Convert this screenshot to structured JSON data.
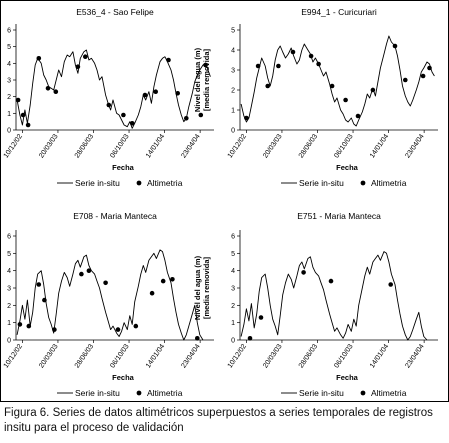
{
  "figure": {
    "caption": "Figura 6. Series de datos altimétricos superpuestos a series temporales de registros insitu para el proceso de validación"
  },
  "colors": {
    "line": "#000000",
    "points": "#000000",
    "frame": "#000000"
  },
  "chart_data": [
    {
      "type": "line",
      "title": "E536_4 - Sao Felipe",
      "xlabel": "Fecha",
      "ylabel": "Nivel del agua (m)",
      "ylabel2": "[media removida]",
      "x_ticks": [
        "10/12/02",
        "20/03/03",
        "28/06/03",
        "06/10/03",
        "14/01/04",
        "23/04/04"
      ],
      "ylim": [
        0,
        6
      ],
      "y_ticks": [
        "0",
        "1",
        "2",
        "3",
        "4",
        "5",
        "6"
      ],
      "legend": [
        "Serie in-situ",
        "Altimetria"
      ],
      "legend_position": "bottom",
      "series": [
        {
          "name": "Serie in-situ",
          "kind": "line",
          "x": [
            "2002-11-25",
            "2002-12-03",
            "2002-12-10",
            "2002-12-17",
            "2002-12-24",
            "2003-01-01",
            "2003-01-08",
            "2003-01-15",
            "2003-01-22",
            "2003-02-01",
            "2003-02-08",
            "2003-02-15",
            "2003-02-22",
            "2003-03-01",
            "2003-03-08",
            "2003-03-15",
            "2003-03-22",
            "2003-03-30",
            "2003-04-07",
            "2003-04-15",
            "2003-04-22",
            "2003-05-01",
            "2003-05-08",
            "2003-05-15",
            "2003-05-22",
            "2003-06-01",
            "2003-06-08",
            "2003-06-15",
            "2003-06-22",
            "2003-07-01",
            "2003-07-08",
            "2003-07-15",
            "2003-07-22",
            "2003-08-01",
            "2003-08-08",
            "2003-08-15",
            "2003-08-22",
            "2003-09-01",
            "2003-09-08",
            "2003-09-15",
            "2003-09-22",
            "2003-10-01",
            "2003-10-08",
            "2003-10-15",
            "2003-10-22",
            "2003-11-01",
            "2003-11-08",
            "2003-11-15",
            "2003-11-22",
            "2003-12-01",
            "2003-12-08",
            "2003-12-15",
            "2003-12-22",
            "2004-01-01",
            "2004-01-08",
            "2004-01-15",
            "2004-01-22",
            "2004-02-01",
            "2004-02-08",
            "2004-02-15",
            "2004-02-22",
            "2004-03-01",
            "2004-03-08",
            "2004-03-15",
            "2004-03-22",
            "2004-04-01",
            "2004-04-08",
            "2004-04-15",
            "2004-04-22",
            "2004-05-01",
            "2004-05-08",
            "2004-05-15",
            "2004-05-22"
          ],
          "y": [
            1.8,
            0.9,
            0.3,
            1.2,
            0.4,
            1.5,
            2.8,
            3.9,
            4.3,
            4.0,
            3.3,
            3.0,
            2.6,
            2.5,
            2.4,
            3.0,
            3.6,
            3.2,
            4.1,
            4.5,
            4.4,
            4.7,
            3.9,
            3.4,
            4.3,
            4.7,
            4.8,
            4.2,
            4.3,
            4.0,
            3.6,
            3.0,
            3.2,
            2.1,
            1.6,
            1.2,
            1.8,
            1.0,
            0.9,
            0.6,
            0.3,
            0.2,
            0.5,
            0.1,
            0.4,
            0.9,
            1.4,
            2.1,
            1.8,
            2.3,
            1.6,
            2.6,
            3.3,
            4.1,
            4.3,
            4.4,
            4.1,
            3.6,
            3.0,
            2.2,
            1.5,
            0.9,
            0.5,
            0.7,
            1.4,
            2.2,
            2.9,
            3.3,
            3.6,
            3.9,
            4.0,
            3.6,
            3.2
          ]
        },
        {
          "name": "Altimetria",
          "kind": "scatter",
          "x": [
            "2002-11-28",
            "2002-12-12",
            "2002-12-26",
            "2003-01-25",
            "2003-02-20",
            "2003-03-14",
            "2003-05-15",
            "2003-06-05",
            "2003-08-10",
            "2003-09-20",
            "2003-10-15",
            "2003-11-20",
            "2003-12-20",
            "2004-01-25",
            "2004-02-20",
            "2004-03-15",
            "2004-04-25",
            "2004-05-08"
          ],
          "y": [
            1.8,
            0.9,
            0.3,
            4.3,
            2.5,
            2.3,
            3.8,
            4.4,
            1.5,
            0.9,
            0.4,
            2.1,
            2.3,
            4.2,
            2.2,
            0.7,
            0.9,
            3.9
          ]
        }
      ]
    },
    {
      "type": "line",
      "title": "E994_1 - Curicuriari",
      "xlabel": "Fecha",
      "ylabel": "Nivel del agua (m)",
      "ylabel2": "[media removida]",
      "x_ticks": [
        "10/12/02",
        "20/03/03",
        "28/06/03",
        "06/10/03",
        "14/01/04",
        "23/04/04"
      ],
      "ylim": [
        0,
        5
      ],
      "y_ticks": [
        "0",
        "1",
        "2",
        "3",
        "4",
        "5"
      ],
      "legend": [
        "Serie in-situ",
        "Altimetria"
      ],
      "legend_position": "bottom",
      "series": [
        {
          "name": "Serie in-situ",
          "kind": "line",
          "x": [
            "2002-11-25",
            "2002-12-03",
            "2002-12-10",
            "2002-12-17",
            "2002-12-24",
            "2003-01-01",
            "2003-01-08",
            "2003-01-15",
            "2003-01-22",
            "2003-02-01",
            "2003-02-08",
            "2003-02-15",
            "2003-02-22",
            "2003-03-01",
            "2003-03-08",
            "2003-03-15",
            "2003-03-22",
            "2003-03-30",
            "2003-04-07",
            "2003-04-15",
            "2003-04-22",
            "2003-05-01",
            "2003-05-08",
            "2003-05-15",
            "2003-05-22",
            "2003-06-01",
            "2003-06-08",
            "2003-06-15",
            "2003-06-22",
            "2003-07-01",
            "2003-07-08",
            "2003-07-15",
            "2003-07-22",
            "2003-08-01",
            "2003-08-08",
            "2003-08-15",
            "2003-08-22",
            "2003-09-01",
            "2003-09-08",
            "2003-09-15",
            "2003-09-22",
            "2003-10-01",
            "2003-10-08",
            "2003-10-15",
            "2003-10-22",
            "2003-11-01",
            "2003-11-08",
            "2003-11-15",
            "2003-11-22",
            "2003-12-01",
            "2003-12-08",
            "2003-12-15",
            "2003-12-22",
            "2004-01-01",
            "2004-01-08",
            "2004-01-15",
            "2004-01-22",
            "2004-02-01",
            "2004-02-08",
            "2004-02-15",
            "2004-02-22",
            "2004-03-01",
            "2004-03-08",
            "2004-03-15",
            "2004-03-22",
            "2004-04-01",
            "2004-04-08",
            "2004-04-15",
            "2004-04-22",
            "2004-05-01",
            "2004-05-08",
            "2004-05-15",
            "2004-05-22"
          ],
          "y": [
            1.3,
            0.7,
            0.4,
            0.6,
            1.2,
            1.9,
            2.6,
            3.1,
            3.6,
            3.2,
            2.6,
            2.2,
            2.7,
            3.5,
            4.0,
            4.2,
            3.9,
            3.6,
            3.8,
            4.1,
            3.7,
            3.3,
            3.5,
            4.0,
            4.3,
            4.0,
            3.8,
            3.4,
            3.6,
            3.3,
            3.0,
            2.7,
            2.9,
            2.3,
            1.8,
            1.4,
            1.6,
            1.0,
            0.8,
            0.5,
            0.4,
            0.6,
            0.3,
            0.2,
            0.5,
            0.9,
            1.3,
            1.8,
            1.6,
            2.1,
            1.7,
            2.4,
            3.1,
            3.8,
            4.3,
            4.7,
            4.4,
            4.2,
            3.7,
            3.0,
            2.2,
            1.7,
            1.4,
            1.2,
            1.5,
            2.0,
            2.4,
            2.9,
            3.1,
            3.4,
            3.3,
            2.9,
            2.7
          ]
        },
        {
          "name": "Altimetria",
          "kind": "scatter",
          "x": [
            "2002-12-10",
            "2003-01-12",
            "2003-02-08",
            "2003-03-10",
            "2003-04-20",
            "2003-06-10",
            "2003-07-01",
            "2003-08-08",
            "2003-09-15",
            "2003-10-20",
            "2003-12-01",
            "2004-02-01",
            "2004-03-01",
            "2004-04-20",
            "2004-05-08"
          ],
          "y": [
            0.6,
            3.2,
            2.2,
            3.2,
            3.9,
            3.7,
            3.3,
            2.2,
            1.5,
            0.7,
            2.0,
            4.2,
            2.5,
            2.7,
            3.1
          ]
        }
      ]
    },
    {
      "type": "line",
      "title": "E708 - Maria Manteca",
      "xlabel": "Fecha",
      "ylabel": "Nivel del agua (m)",
      "ylabel2": "[media removida]",
      "x_ticks": [
        "10/12/02",
        "20/03/03",
        "28/06/03",
        "06/10/03",
        "14/01/04",
        "23/04/04"
      ],
      "ylim": [
        0,
        6
      ],
      "y_ticks": [
        "0",
        "1",
        "2",
        "3",
        "4",
        "5",
        "6"
      ],
      "legend": [
        "Serie in-situ",
        "Altimetria"
      ],
      "legend_position": "bottom",
      "series": [
        {
          "name": "Serie in-situ",
          "kind": "line",
          "x": [
            "2002-11-25",
            "2002-12-03",
            "2002-12-10",
            "2002-12-17",
            "2002-12-24",
            "2003-01-01",
            "2003-01-08",
            "2003-01-15",
            "2003-01-22",
            "2003-02-01",
            "2003-02-08",
            "2003-02-15",
            "2003-02-22",
            "2003-03-01",
            "2003-03-08",
            "2003-03-15",
            "2003-03-22",
            "2003-03-30",
            "2003-04-07",
            "2003-04-15",
            "2003-04-22",
            "2003-05-01",
            "2003-05-08",
            "2003-05-15",
            "2003-05-22",
            "2003-06-01",
            "2003-06-08",
            "2003-06-15",
            "2003-06-22",
            "2003-07-01",
            "2003-07-08",
            "2003-07-15",
            "2003-07-22",
            "2003-08-01",
            "2003-08-08",
            "2003-08-15",
            "2003-08-22",
            "2003-09-01",
            "2003-09-08",
            "2003-09-15",
            "2003-09-22",
            "2003-10-01",
            "2003-10-08",
            "2003-10-15",
            "2003-10-22",
            "2003-11-01",
            "2003-11-08",
            "2003-11-15",
            "2003-11-22",
            "2003-12-01",
            "2003-12-08",
            "2003-12-15",
            "2003-12-22",
            "2004-01-01",
            "2004-01-08",
            "2004-01-15",
            "2004-01-22",
            "2004-02-01",
            "2004-02-08",
            "2004-02-15",
            "2004-02-22",
            "2004-03-01",
            "2004-03-08",
            "2004-03-15",
            "2004-03-22",
            "2004-04-01",
            "2004-04-08",
            "2004-04-15",
            "2004-04-22",
            "2004-05-01"
          ],
          "y": [
            0.3,
            1.1,
            2.0,
            1.2,
            2.3,
            0.8,
            1.6,
            3.0,
            3.8,
            4.0,
            3.2,
            2.1,
            1.3,
            0.9,
            0.4,
            1.5,
            2.7,
            3.4,
            3.9,
            3.6,
            3.1,
            3.8,
            4.4,
            4.6,
            4.2,
            4.8,
            4.9,
            4.3,
            4.0,
            3.8,
            3.4,
            3.0,
            2.4,
            1.6,
            1.1,
            0.6,
            0.8,
            0.4,
            0.2,
            0.5,
            1.0,
            0.6,
            1.4,
            0.9,
            2.2,
            3.1,
            3.8,
            4.3,
            3.9,
            4.6,
            4.8,
            5.0,
            4.7,
            5.2,
            5.1,
            4.6,
            3.9,
            3.3,
            2.4,
            1.6,
            0.9,
            0.4,
            0.0,
            0.3,
            0.8,
            1.5,
            2.0,
            1.0,
            0.3,
            0.0
          ]
        },
        {
          "name": "Altimetria",
          "kind": "scatter",
          "x": [
            "2002-12-03",
            "2002-12-28",
            "2003-01-25",
            "2003-02-10",
            "2003-03-10",
            "2003-05-25",
            "2003-06-15",
            "2003-08-01",
            "2003-09-05",
            "2003-10-25",
            "2003-12-10",
            "2004-01-10",
            "2004-02-05",
            "2004-04-15"
          ],
          "y": [
            0.9,
            0.8,
            3.2,
            2.3,
            0.6,
            3.8,
            4.0,
            3.3,
            0.6,
            0.8,
            2.7,
            3.4,
            3.5,
            0.1
          ]
        }
      ]
    },
    {
      "type": "line",
      "title": "E751 - Maria Manteca",
      "xlabel": "Fecha",
      "ylabel": "Nivel del agua (m)",
      "ylabel2": "[media removida]",
      "x_ticks": [
        "10/12/02",
        "20/03/03",
        "28/06/03",
        "06/10/03",
        "14/01/04",
        "23/04/04"
      ],
      "ylim": [
        0,
        6
      ],
      "y_ticks": [
        "0",
        "1",
        "2",
        "3",
        "4",
        "5",
        "6"
      ],
      "legend": [
        "Serie in-situ",
        "Altimetria"
      ],
      "legend_position": "bottom",
      "series": [
        {
          "name": "Serie in-situ",
          "kind": "line",
          "x": [
            "2002-11-25",
            "2002-12-03",
            "2002-12-10",
            "2002-12-17",
            "2002-12-24",
            "2003-01-01",
            "2003-01-08",
            "2003-01-15",
            "2003-01-22",
            "2003-02-01",
            "2003-02-08",
            "2003-02-15",
            "2003-02-22",
            "2003-03-01",
            "2003-03-08",
            "2003-03-15",
            "2003-03-22",
            "2003-03-30",
            "2003-04-07",
            "2003-04-15",
            "2003-04-22",
            "2003-05-01",
            "2003-05-08",
            "2003-05-15",
            "2003-05-22",
            "2003-06-01",
            "2003-06-08",
            "2003-06-15",
            "2003-06-22",
            "2003-07-01",
            "2003-07-08",
            "2003-07-15",
            "2003-07-22",
            "2003-08-01",
            "2003-08-08",
            "2003-08-15",
            "2003-08-22",
            "2003-09-01",
            "2003-09-08",
            "2003-09-15",
            "2003-09-22",
            "2003-10-01",
            "2003-10-08",
            "2003-10-15",
            "2003-10-22",
            "2003-11-01",
            "2003-11-08",
            "2003-11-15",
            "2003-11-22",
            "2003-12-01",
            "2003-12-08",
            "2003-12-15",
            "2003-12-22",
            "2004-01-01",
            "2004-01-08",
            "2004-01-15",
            "2004-01-22",
            "2004-02-01",
            "2004-02-08",
            "2004-02-15",
            "2004-02-22",
            "2004-03-01",
            "2004-03-08",
            "2004-03-15",
            "2004-03-22",
            "2004-04-01",
            "2004-04-08",
            "2004-04-15",
            "2004-04-22",
            "2004-05-01"
          ],
          "y": [
            0.2,
            0.9,
            1.8,
            1.1,
            2.1,
            0.7,
            1.5,
            2.8,
            3.6,
            3.8,
            3.0,
            2.0,
            1.2,
            0.8,
            0.3,
            1.4,
            2.6,
            3.3,
            3.8,
            3.5,
            3.0,
            3.7,
            4.3,
            4.5,
            4.1,
            4.7,
            4.8,
            4.2,
            3.9,
            3.7,
            3.3,
            2.9,
            2.3,
            1.5,
            1.0,
            0.5,
            0.7,
            0.3,
            0.1,
            0.4,
            0.9,
            0.5,
            1.2,
            0.8,
            2.0,
            3.0,
            3.7,
            4.2,
            3.8,
            4.5,
            4.7,
            4.9,
            4.6,
            5.1,
            5.0,
            4.5,
            3.8,
            3.2,
            2.3,
            1.5,
            0.8,
            0.3,
            0.0,
            0.2,
            0.6,
            1.2,
            1.6,
            0.8,
            0.2,
            0.0
          ]
        },
        {
          "name": "Altimetria",
          "kind": "scatter",
          "x": [
            "2002-12-20",
            "2003-01-20",
            "2003-05-20",
            "2003-08-05",
            "2004-01-20"
          ],
          "y": [
            0.1,
            1.3,
            3.9,
            3.4,
            3.2
          ]
        }
      ]
    }
  ]
}
